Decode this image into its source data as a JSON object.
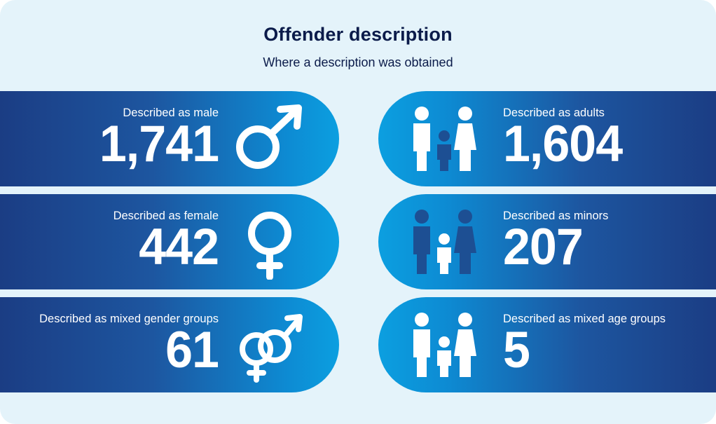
{
  "header": {
    "title": "Offender description",
    "subtitle": "Where a description was obtained"
  },
  "cards": [
    {
      "label": "Described as male",
      "value": "1,741",
      "icon": "male-symbol-icon"
    },
    {
      "label": "Described as female",
      "value": "442",
      "icon": "female-symbol-icon"
    },
    {
      "label": "Described as mixed gender groups",
      "value": "61",
      "icon": "mixed-gender-icon"
    },
    {
      "label": "Described as adults",
      "value": "1,604",
      "icon": "family-adults-icon"
    },
    {
      "label": "Described as minors",
      "value": "207",
      "icon": "family-minors-icon"
    },
    {
      "label": "Described as mixed age groups",
      "value": "5",
      "icon": "family-mixed-icon"
    }
  ],
  "colors": {
    "panel_bg": "#e4f3fa",
    "title_text": "#0b1b4a",
    "card_dark": "#1b3d84",
    "card_light": "#0c9fe0",
    "icon_muted": "#1d4f93"
  }
}
